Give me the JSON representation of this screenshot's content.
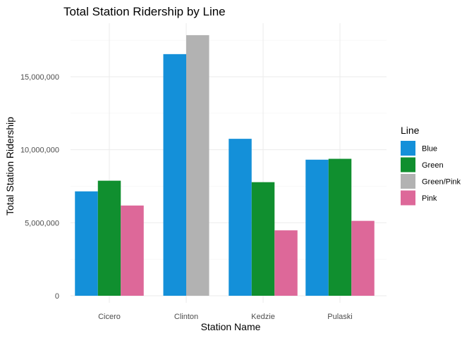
{
  "chart_data": {
    "type": "bar",
    "title": "Total Station Ridership by Line",
    "xlabel": "Station Name",
    "ylabel": "Total Station Ridership",
    "categories": [
      "Cicero",
      "Clinton",
      "Kedzie",
      "Pulaski"
    ],
    "ylim": [
      0,
      18500000
    ],
    "yticks": [
      0,
      5000000,
      10000000,
      15000000
    ],
    "ytick_labels": [
      "0",
      "5,000,000",
      "10,000,000",
      "15,000,000"
    ],
    "grid": true,
    "legend": {
      "title": "Line",
      "placement": "right",
      "entries": [
        {
          "name": "Blue",
          "color": "#1490d9"
        },
        {
          "name": "Green",
          "color": "#108f2f"
        },
        {
          "name": "Green/Pink",
          "color": "#b2b2b2"
        },
        {
          "name": "Pink",
          "color": "#dd6899"
        }
      ]
    },
    "bars": [
      {
        "category": "Cicero",
        "series": "Blue",
        "value": 7150000
      },
      {
        "category": "Cicero",
        "series": "Green",
        "value": 7880000
      },
      {
        "category": "Cicero",
        "series": "Pink",
        "value": 6180000
      },
      {
        "category": "Clinton",
        "series": "Blue",
        "value": 16550000
      },
      {
        "category": "Clinton",
        "series": "Green/Pink",
        "value": 17850000
      },
      {
        "category": "Kedzie",
        "series": "Blue",
        "value": 10750000
      },
      {
        "category": "Kedzie",
        "series": "Green",
        "value": 7780000
      },
      {
        "category": "Kedzie",
        "series": "Pink",
        "value": 4480000
      },
      {
        "category": "Pulaski",
        "series": "Blue",
        "value": 9320000
      },
      {
        "category": "Pulaski",
        "series": "Green",
        "value": 9380000
      },
      {
        "category": "Pulaski",
        "series": "Pink",
        "value": 5130000
      }
    ]
  }
}
